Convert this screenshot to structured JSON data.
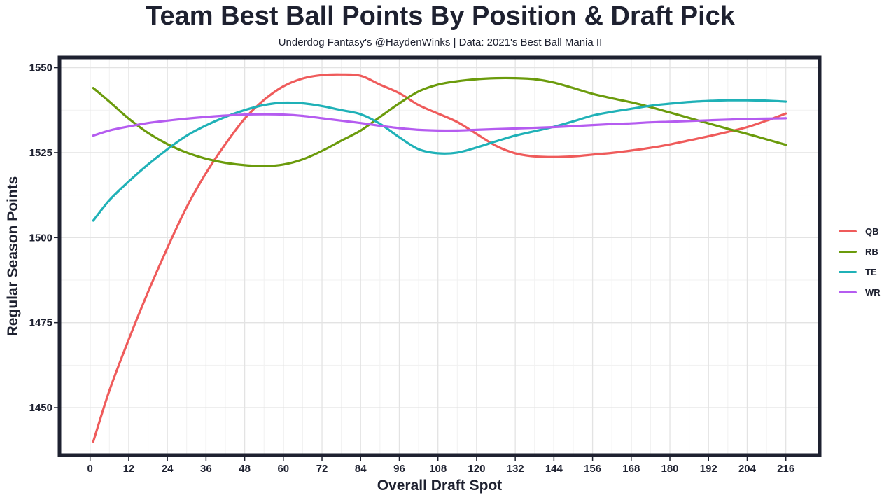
{
  "header": {
    "title": "Team Best Ball Points By Position & Draft Pick",
    "subtitle": "Underdog Fantasy's @HaydenWinks | Data: 2021's Best Ball Mania II"
  },
  "chart_data": {
    "type": "line",
    "title": "Team Best Ball Points By Position & Draft Pick",
    "subtitle": "Underdog Fantasy's @HaydenWinks | Data: 2021's Best Ball Mania II",
    "xlabel": "Overall Draft Spot",
    "ylabel": "Regular Season Points",
    "xlim": [
      -9.5,
      226.5
    ],
    "ylim": [
      1436,
      1553
    ],
    "x_ticks": [
      0,
      12,
      24,
      36,
      48,
      60,
      72,
      84,
      96,
      108,
      120,
      132,
      144,
      156,
      168,
      180,
      192,
      204,
      216
    ],
    "y_ticks": [
      1450,
      1475,
      1500,
      1525,
      1550
    ],
    "grid": true,
    "legend_position": "right",
    "series": [
      {
        "name": "QB",
        "color": "#ef5b5b",
        "points": [
          [
            1,
            1440
          ],
          [
            6,
            1455
          ],
          [
            12,
            1470
          ],
          [
            18,
            1484
          ],
          [
            24,
            1497
          ],
          [
            30,
            1509
          ],
          [
            36,
            1519
          ],
          [
            42,
            1527.5
          ],
          [
            48,
            1535
          ],
          [
            54,
            1540.5
          ],
          [
            60,
            1544.5
          ],
          [
            66,
            1546.8
          ],
          [
            72,
            1547.8
          ],
          [
            78,
            1548
          ],
          [
            84,
            1547.6
          ],
          [
            90,
            1545
          ],
          [
            96,
            1542.5
          ],
          [
            102,
            1539
          ],
          [
            108,
            1536.5
          ],
          [
            114,
            1534
          ],
          [
            120,
            1530.5
          ],
          [
            126,
            1527
          ],
          [
            132,
            1524.8
          ],
          [
            138,
            1523.9
          ],
          [
            144,
            1523.7
          ],
          [
            150,
            1523.9
          ],
          [
            156,
            1524.4
          ],
          [
            162,
            1524.9
          ],
          [
            168,
            1525.6
          ],
          [
            174,
            1526.4
          ],
          [
            180,
            1527.4
          ],
          [
            186,
            1528.6
          ],
          [
            192,
            1529.8
          ],
          [
            198,
            1531.1
          ],
          [
            204,
            1532.5
          ],
          [
            210,
            1534.4
          ],
          [
            216,
            1536.5
          ]
        ]
      },
      {
        "name": "RB",
        "color": "#6b9b0c",
        "points": [
          [
            1,
            1544
          ],
          [
            6,
            1540
          ],
          [
            12,
            1535
          ],
          [
            18,
            1530.8
          ],
          [
            24,
            1527.5
          ],
          [
            30,
            1525
          ],
          [
            36,
            1523.2
          ],
          [
            42,
            1522
          ],
          [
            48,
            1521.3
          ],
          [
            54,
            1521
          ],
          [
            60,
            1521.5
          ],
          [
            66,
            1523
          ],
          [
            72,
            1525.5
          ],
          [
            78,
            1528.5
          ],
          [
            84,
            1531.5
          ],
          [
            90,
            1535.5
          ],
          [
            96,
            1539.5
          ],
          [
            102,
            1543
          ],
          [
            108,
            1545
          ],
          [
            114,
            1546
          ],
          [
            120,
            1546.6
          ],
          [
            126,
            1546.9
          ],
          [
            132,
            1546.9
          ],
          [
            138,
            1546.6
          ],
          [
            144,
            1545.6
          ],
          [
            150,
            1544
          ],
          [
            156,
            1542.3
          ],
          [
            162,
            1541
          ],
          [
            168,
            1539.8
          ],
          [
            174,
            1538.4
          ],
          [
            180,
            1536.8
          ],
          [
            186,
            1535.2
          ],
          [
            192,
            1533.6
          ],
          [
            198,
            1532
          ],
          [
            204,
            1530.5
          ],
          [
            210,
            1528.9
          ],
          [
            216,
            1527.3
          ]
        ]
      },
      {
        "name": "TE",
        "color": "#1fb1b7",
        "points": [
          [
            1,
            1505
          ],
          [
            6,
            1511
          ],
          [
            12,
            1516.5
          ],
          [
            18,
            1521.5
          ],
          [
            24,
            1526
          ],
          [
            30,
            1530
          ],
          [
            36,
            1533
          ],
          [
            42,
            1535.5
          ],
          [
            48,
            1537.5
          ],
          [
            54,
            1539
          ],
          [
            60,
            1539.7
          ],
          [
            66,
            1539.5
          ],
          [
            72,
            1538.7
          ],
          [
            78,
            1537.5
          ],
          [
            84,
            1536.3
          ],
          [
            90,
            1533.5
          ],
          [
            96,
            1529.5
          ],
          [
            102,
            1526
          ],
          [
            108,
            1524.8
          ],
          [
            114,
            1525
          ],
          [
            120,
            1526.5
          ],
          [
            126,
            1528.3
          ],
          [
            132,
            1530
          ],
          [
            138,
            1531.3
          ],
          [
            144,
            1532.6
          ],
          [
            150,
            1534.2
          ],
          [
            156,
            1535.9
          ],
          [
            162,
            1537
          ],
          [
            168,
            1537.9
          ],
          [
            174,
            1538.8
          ],
          [
            180,
            1539.4
          ],
          [
            186,
            1539.9
          ],
          [
            192,
            1540.2
          ],
          [
            198,
            1540.4
          ],
          [
            204,
            1540.4
          ],
          [
            210,
            1540.3
          ],
          [
            216,
            1540
          ]
        ]
      },
      {
        "name": "WR",
        "color": "#b55cf0",
        "points": [
          [
            1,
            1530
          ],
          [
            6,
            1531.5
          ],
          [
            12,
            1532.7
          ],
          [
            18,
            1533.7
          ],
          [
            24,
            1534.4
          ],
          [
            30,
            1535
          ],
          [
            36,
            1535.5
          ],
          [
            42,
            1535.9
          ],
          [
            48,
            1536.2
          ],
          [
            54,
            1536.3
          ],
          [
            60,
            1536.2
          ],
          [
            66,
            1535.8
          ],
          [
            72,
            1535.1
          ],
          [
            78,
            1534.4
          ],
          [
            84,
            1533.7
          ],
          [
            90,
            1532.9
          ],
          [
            96,
            1532.2
          ],
          [
            102,
            1531.7
          ],
          [
            108,
            1531.5
          ],
          [
            114,
            1531.5
          ],
          [
            120,
            1531.7
          ],
          [
            126,
            1531.9
          ],
          [
            132,
            1532.1
          ],
          [
            138,
            1532.3
          ],
          [
            144,
            1532.5
          ],
          [
            150,
            1532.8
          ],
          [
            156,
            1533.1
          ],
          [
            162,
            1533.4
          ],
          [
            168,
            1533.6
          ],
          [
            174,
            1533.9
          ],
          [
            180,
            1534.1
          ],
          [
            186,
            1534.3
          ],
          [
            192,
            1534.5
          ],
          [
            198,
            1534.7
          ],
          [
            204,
            1534.9
          ],
          [
            210,
            1535
          ],
          [
            216,
            1535.1
          ]
        ]
      }
    ]
  }
}
